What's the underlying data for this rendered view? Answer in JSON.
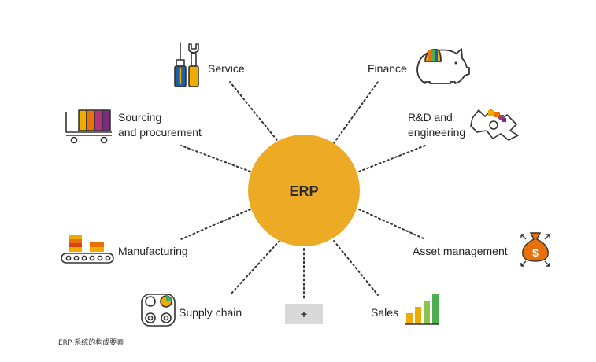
{
  "center": {
    "label": "ERP"
  },
  "nodes": {
    "service": "Service",
    "finance": "Finance",
    "sourcing": [
      "Sourcing",
      "and procurement"
    ],
    "rnd": [
      "R&D and",
      "engineering"
    ],
    "manufacturing": "Manufacturing",
    "asset": "Asset management",
    "supply": "Supply chain",
    "sales": "Sales",
    "plus": "+"
  },
  "caption": "ERP 系统的构成要素",
  "colors": {
    "hub": "#EDAA24",
    "plus_box": "#D9D9D9",
    "icon_line": "#333333",
    "yellow": "#F0AB00",
    "orange": "#E8710A",
    "red": "#D84315",
    "magenta": "#B0347A",
    "purple": "#7B2C80",
    "green": "#4CAF50",
    "blue": "#1F5FA8"
  },
  "icons": [
    "wrench-screwdriver-icon",
    "piggy-bank-icon",
    "cart-icon",
    "gears-icon",
    "conveyor-icon",
    "money-bag-icon",
    "rollers-icon",
    "bar-chart-icon"
  ]
}
